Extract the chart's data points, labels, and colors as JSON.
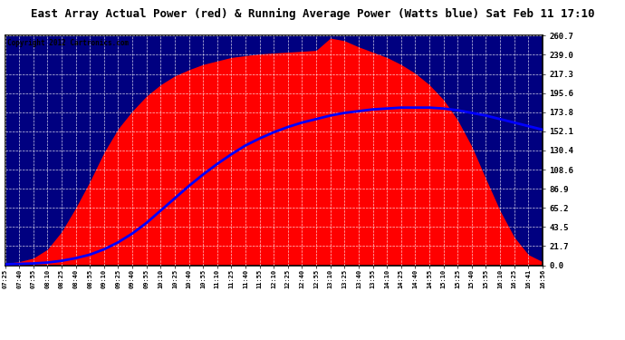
{
  "title": "East Array Actual Power (red) & Running Average Power (Watts blue) Sat Feb 11 17:10",
  "copyright": "Copyright 2012 Cartronics.com",
  "bg_color": "#000080",
  "yticks": [
    0.0,
    21.7,
    43.5,
    65.2,
    86.9,
    108.6,
    130.4,
    152.1,
    173.8,
    195.6,
    217.3,
    239.0,
    260.7
  ],
  "ymax": 260.7,
  "xtick_labels": [
    "07:25",
    "07:40",
    "07:55",
    "08:10",
    "08:25",
    "08:40",
    "08:55",
    "09:10",
    "09:25",
    "09:40",
    "09:55",
    "10:10",
    "10:25",
    "10:40",
    "10:55",
    "11:10",
    "11:25",
    "11:40",
    "11:55",
    "12:10",
    "12:25",
    "12:40",
    "12:55",
    "13:10",
    "13:25",
    "13:40",
    "13:55",
    "14:10",
    "14:25",
    "14:40",
    "14:55",
    "15:10",
    "15:25",
    "15:40",
    "15:55",
    "16:10",
    "16:25",
    "16:41",
    "16:56"
  ],
  "actual_power": [
    2,
    4,
    8,
    18,
    38,
    65,
    95,
    128,
    155,
    175,
    192,
    205,
    215,
    222,
    228,
    232,
    236,
    238,
    240,
    241,
    242,
    243,
    244,
    258,
    255,
    248,
    242,
    236,
    228,
    218,
    205,
    188,
    165,
    135,
    98,
    62,
    32,
    12,
    4
  ],
  "running_avg": [
    1,
    1.5,
    2,
    3,
    5,
    8,
    12,
    18,
    26,
    36,
    48,
    62,
    76,
    90,
    103,
    115,
    126,
    136,
    144,
    151,
    157,
    162,
    166,
    170,
    173,
    175,
    177,
    178,
    179,
    179,
    179,
    178,
    176,
    173,
    170,
    166,
    162,
    158,
    154
  ],
  "actual_color": "#ff0000",
  "avg_color": "#0000ff",
  "avg_linewidth": 2.0
}
